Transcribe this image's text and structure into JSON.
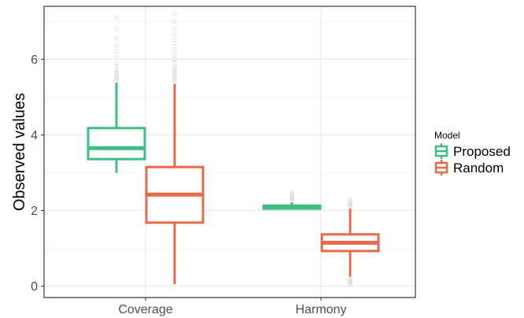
{
  "chart_data": {
    "type": "box",
    "ylabel": "Observed values",
    "ylim": [
      -0.3,
      7.4
    ],
    "yticks": [
      0,
      2,
      4,
      6
    ],
    "categories": [
      "Coverage",
      "Harmony"
    ],
    "legend": {
      "title": "Model",
      "placement": "right"
    },
    "grid": true,
    "series": [
      {
        "name": "Proposed",
        "color": "#3dbf80",
        "boxes": [
          {
            "category": "Coverage",
            "whisker_low": 3.0,
            "q1": 3.36,
            "median": 3.65,
            "q3": 4.18,
            "whisker_high": 5.38,
            "outliers": [
              5.42,
              5.46,
              5.5,
              5.55,
              5.6,
              5.66,
              5.72,
              5.8,
              5.9,
              6.05,
              6.2,
              6.35,
              6.55,
              6.8,
              7.1
            ]
          },
          {
            "category": "Harmony",
            "whisker_low": 2.03,
            "q1": 2.05,
            "median": 2.09,
            "q3": 2.13,
            "whisker_high": 2.22,
            "outliers": [
              2.26,
              2.3,
              2.33,
              2.37,
              2.41,
              2.45,
              2.5
            ]
          }
        ]
      },
      {
        "name": "Random",
        "color": "#e8684a",
        "boxes": [
          {
            "category": "Coverage",
            "whisker_low": 0.05,
            "q1": 1.68,
            "median": 2.42,
            "q3": 3.15,
            "whisker_high": 5.35,
            "outliers": [
              5.4,
              5.45,
              5.5,
              5.55,
              5.6,
              5.65,
              5.7,
              5.76,
              5.82,
              5.9,
              6.0,
              6.1,
              6.22,
              6.35,
              6.5,
              6.65,
              6.8,
              7.0,
              7.2
            ]
          },
          {
            "category": "Harmony",
            "whisker_low": 0.25,
            "q1": 0.93,
            "median": 1.15,
            "q3": 1.37,
            "whisker_high": 2.05,
            "outliers": [
              2.08,
              2.12,
              2.16,
              2.2,
              2.25,
              2.3,
              0.2,
              0.16,
              0.12,
              0.08,
              0.05
            ]
          }
        ]
      }
    ]
  }
}
